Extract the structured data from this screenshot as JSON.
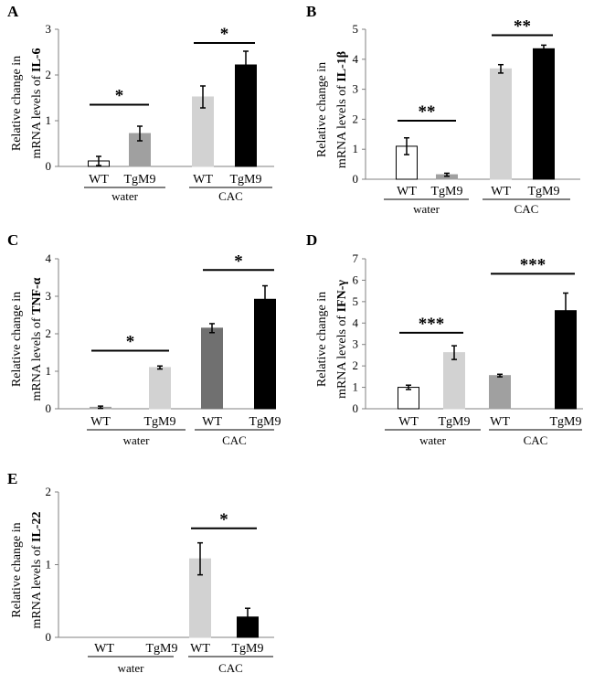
{
  "chart_data": [
    {
      "type": "bar",
      "panel": "A",
      "ylabel_line1": "Relative change in",
      "ylabel_line2": "mRNA levels of",
      "gene": "IL-6",
      "ylim": [
        0,
        3
      ],
      "yticks": [
        "0",
        "1",
        "2",
        "3"
      ],
      "categories": [
        "WT",
        "TgM9",
        "WT",
        "TgM9"
      ],
      "groups": [
        "water",
        "CAC"
      ],
      "values": [
        0.12,
        0.72,
        1.52,
        2.22
      ],
      "errors": [
        0.1,
        0.16,
        0.24,
        0.3
      ],
      "colors": [
        "#ffffff",
        "#a0a0a0",
        "#d2d2d2",
        "#000000"
      ],
      "significance": [
        {
          "between": [
            0,
            1
          ],
          "label": "*",
          "y": 1.35
        },
        {
          "between": [
            2,
            3
          ],
          "label": "*",
          "y": 2.7
        }
      ]
    },
    {
      "type": "bar",
      "panel": "B",
      "ylabel_line1": "Relative change in",
      "ylabel_line2": "mRNA levels of",
      "gene": "IL-1β",
      "ylim": [
        0,
        5
      ],
      "yticks": [
        "0",
        "1",
        "2",
        "3",
        "4",
        "5"
      ],
      "categories": [
        "WT",
        "TgM9",
        "WT",
        "TgM9"
      ],
      "groups": [
        "water",
        "CAC"
      ],
      "values": [
        1.1,
        0.15,
        3.68,
        4.35
      ],
      "errors": [
        0.28,
        0.05,
        0.14,
        0.12
      ],
      "colors": [
        "#ffffff",
        "#a0a0a0",
        "#d2d2d2",
        "#000000"
      ],
      "significance": [
        {
          "between": [
            0,
            1
          ],
          "label": "**",
          "y": 1.95
        },
        {
          "between": [
            2,
            3
          ],
          "label": "**",
          "y": 4.8
        }
      ]
    },
    {
      "type": "bar",
      "panel": "C",
      "ylabel_line1": "Relative change in",
      "ylabel_line2": "mRNA levels of",
      "gene": "TNF-α",
      "ylim": [
        0,
        4
      ],
      "yticks": [
        "0",
        "1",
        "2",
        "3",
        "4"
      ],
      "categories": [
        "WT",
        "TgM9",
        "WT",
        "TgM9"
      ],
      "groups": [
        "water",
        "CAC"
      ],
      "values": [
        0.04,
        1.1,
        2.15,
        2.92
      ],
      "errors": [
        0.03,
        0.04,
        0.12,
        0.36
      ],
      "colors": [
        "#a0a0a0",
        "#d2d2d2",
        "#707070",
        "#000000"
      ],
      "significance": [
        {
          "between": [
            0,
            1
          ],
          "label": "*",
          "y": 1.55
        },
        {
          "between": [
            2,
            3
          ],
          "label": "*",
          "y": 3.7
        }
      ]
    },
    {
      "type": "bar",
      "panel": "D",
      "ylabel_line1": "Relative change in",
      "ylabel_line2": "mRNA levels of",
      "gene": "IFN-γ",
      "ylim": [
        0,
        7
      ],
      "yticks": [
        "0",
        "1",
        "2",
        "3",
        "4",
        "5",
        "6",
        "7"
      ],
      "categories": [
        "WT",
        "TgM9",
        "WT",
        "TgM9"
      ],
      "groups": [
        "water",
        "CAC"
      ],
      "values": [
        1.0,
        2.62,
        1.55,
        4.58
      ],
      "errors": [
        0.1,
        0.32,
        0.06,
        0.82
      ],
      "colors": [
        "#ffffff",
        "#d2d2d2",
        "#a0a0a0",
        "#000000"
      ],
      "significance": [
        {
          "between": [
            0,
            1
          ],
          "label": "***",
          "y": 3.55
        },
        {
          "between": [
            2,
            3
          ],
          "label": "***",
          "y": 6.3
        }
      ]
    },
    {
      "type": "bar",
      "panel": "E",
      "ylabel_line1": "Relative change in",
      "ylabel_line2": "mRNA levels of",
      "gene": "IL-22",
      "ylim": [
        0,
        2
      ],
      "yticks": [
        "0",
        "1",
        "2"
      ],
      "categories": [
        "WT",
        "TgM9",
        "WT",
        "TgM9"
      ],
      "groups": [
        "water",
        "CAC"
      ],
      "values": [
        0,
        0,
        1.08,
        0.28
      ],
      "errors": [
        0,
        0,
        0.22,
        0.12
      ],
      "colors": [
        "#ffffff",
        "#a0a0a0",
        "#d2d2d2",
        "#000000"
      ],
      "significance": [
        {
          "between": [
            2,
            3
          ],
          "label": "*",
          "y": 1.5
        }
      ]
    }
  ]
}
